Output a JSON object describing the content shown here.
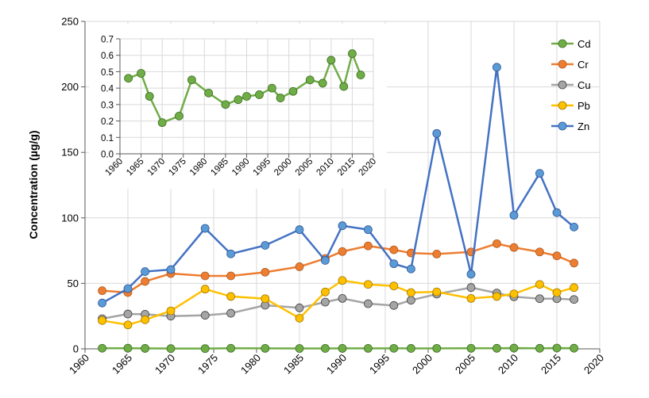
{
  "chart_data": [
    {
      "type": "line",
      "title": "",
      "xlabel": "",
      "ylabel": "Concentration (µg/g)",
      "xlim": [
        1960,
        2020
      ],
      "ylim": [
        0,
        250
      ],
      "xticks": [
        1960,
        1965,
        1970,
        1975,
        1980,
        1985,
        1990,
        1995,
        2000,
        2005,
        2010,
        2015,
        2020
      ],
      "yticks": [
        0,
        50,
        100,
        150,
        200,
        250
      ],
      "grid": true,
      "legend_position": "top-right",
      "x": [
        1962,
        1965,
        1967,
        1970,
        1974,
        1977,
        1981,
        1985,
        1988,
        1990,
        1993,
        1996,
        1998,
        2001,
        2005,
        2008,
        2010,
        2013,
        2015,
        2017
      ],
      "series": [
        {
          "name": "Cd",
          "color": "#70AD47",
          "values": [
            0.46,
            0.49,
            0.35,
            0.19,
            0.23,
            0.45,
            0.37,
            0.3,
            0.33,
            0.35,
            0.36,
            0.4,
            0.34,
            0.38,
            0.45,
            0.43,
            0.57,
            0.41,
            0.61,
            0.48
          ]
        },
        {
          "name": "Cr",
          "color": "#ED7D31",
          "values": [
            44.4,
            43,
            51.5,
            57.5,
            55.7,
            55.7,
            58.5,
            62.7,
            69,
            74.3,
            78.6,
            75.6,
            73.2,
            72.4,
            74,
            80.3,
            77.4,
            74,
            71,
            65.5
          ]
        },
        {
          "name": "Cu",
          "color": "#A5A5A5",
          "values": [
            23,
            26.6,
            26.4,
            25,
            25.6,
            27.2,
            33.3,
            31.3,
            35.7,
            38.5,
            34.5,
            33.1,
            37.1,
            41.8,
            46.8,
            42.6,
            39.8,
            38.3,
            38.3,
            37.7
          ]
        },
        {
          "name": "Pb",
          "color": "#FFC000",
          "values": [
            21.6,
            18.3,
            22.2,
            29,
            45.6,
            40,
            38.3,
            23.4,
            43.4,
            52.2,
            49.2,
            48,
            43,
            43.5,
            38.5,
            40,
            42,
            49.2,
            43,
            46.8
          ]
        },
        {
          "name": "Zn",
          "color": "#4472C4",
          "values": [
            35,
            46,
            59,
            60.5,
            92,
            72.5,
            79,
            91,
            67.5,
            94,
            91,
            65,
            61,
            164.5,
            57,
            215,
            102,
            134,
            104,
            93
          ]
        }
      ]
    },
    {
      "type": "line",
      "title": "",
      "xlabel": "",
      "ylabel": "",
      "xlim": [
        1960,
        2020
      ],
      "ylim": [
        0,
        0.7
      ],
      "xticks": [
        1960,
        1965,
        1970,
        1975,
        1980,
        1985,
        1990,
        1995,
        2000,
        2005,
        2010,
        2015,
        2020
      ],
      "yticks": [
        "0.0",
        "0.1",
        "0.2",
        "0.3",
        "0.4",
        "0.5",
        "0.6",
        "0.7"
      ],
      "grid": true,
      "x": [
        1962,
        1965,
        1967,
        1970,
        1974,
        1977,
        1981,
        1985,
        1988,
        1990,
        1993,
        1996,
        1998,
        2001,
        2005,
        2008,
        2010,
        2013,
        2015,
        2017
      ],
      "series": [
        {
          "name": "Cd",
          "color": "#70AD47",
          "values": [
            0.46,
            0.49,
            0.35,
            0.19,
            0.23,
            0.45,
            0.37,
            0.3,
            0.33,
            0.35,
            0.36,
            0.4,
            0.34,
            0.38,
            0.45,
            0.43,
            0.57,
            0.41,
            0.61,
            0.48
          ]
        }
      ]
    }
  ]
}
